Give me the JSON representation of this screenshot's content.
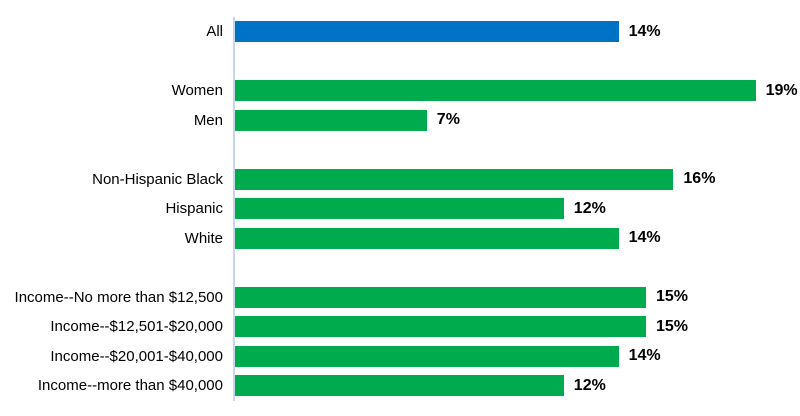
{
  "chart_data": {
    "type": "bar",
    "orientation": "horizontal",
    "title": "",
    "xlabel": "",
    "ylabel": "",
    "xlim": [
      0,
      20
    ],
    "grid": false,
    "legend": null,
    "value_suffix": "%",
    "categories": [
      "All",
      "Women",
      "Men",
      "Non-Hispanic Black",
      "Hispanic",
      "White",
      "Income--No more than $12,500",
      "Income--$12,501-$20,000",
      "Income--$20,001-$40,000",
      "Income--more than $40,000"
    ],
    "values": [
      14,
      19,
      7,
      16,
      12,
      14,
      15,
      15,
      14,
      12
    ],
    "rows": [
      {
        "kind": "bar",
        "label": "All",
        "value": 14,
        "display": "14%",
        "color": "#0072C6"
      },
      {
        "kind": "spacer"
      },
      {
        "kind": "bar",
        "label": "Women",
        "value": 19,
        "display": "19%",
        "color": "#00AB4E"
      },
      {
        "kind": "bar",
        "label": "Men",
        "value": 7,
        "display": "7%",
        "color": "#00AB4E"
      },
      {
        "kind": "spacer"
      },
      {
        "kind": "bar",
        "label": "Non-Hispanic Black",
        "value": 16,
        "display": "16%",
        "color": "#00AB4E"
      },
      {
        "kind": "bar",
        "label": "Hispanic",
        "value": 12,
        "display": "12%",
        "color": "#00AB4E"
      },
      {
        "kind": "bar",
        "label": "White",
        "value": 14,
        "display": "14%",
        "color": "#00AB4E"
      },
      {
        "kind": "spacer"
      },
      {
        "kind": "bar",
        "label": "Income--No more than $12,500",
        "value": 15,
        "display": "15%",
        "color": "#00AB4E"
      },
      {
        "kind": "bar",
        "label": "Income--$12,501-$20,000",
        "value": 15,
        "display": "15%",
        "color": "#00AB4E"
      },
      {
        "kind": "bar",
        "label": "Income--$20,001-$40,000",
        "value": 14,
        "display": "14%",
        "color": "#00AB4E"
      },
      {
        "kind": "bar",
        "label": "Income--more than $40,000",
        "value": 12,
        "display": "12%",
        "color": "#00AB4E"
      }
    ],
    "colors": {
      "all_bar": "#0072C6",
      "group_bar": "#00AB4E",
      "axis_line": "#C8D6EB",
      "text": "#000000",
      "background": "#FFFFFF"
    }
  }
}
